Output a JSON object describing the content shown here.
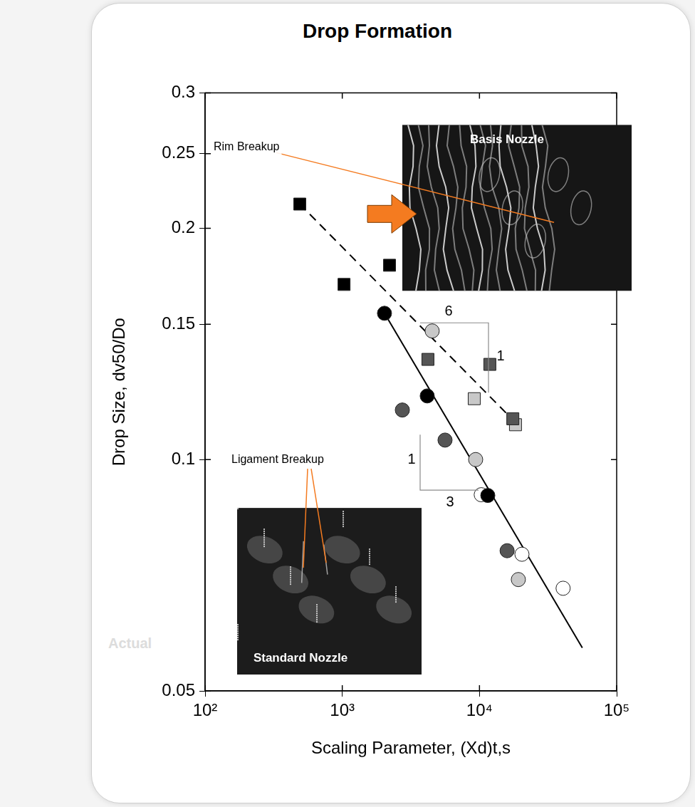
{
  "chart_data": {
    "type": "scatter",
    "title": "Drop Formation",
    "x_label": "Scaling Parameter, (Xd)t,s",
    "y_label": "Drop Size, dv50/Do",
    "log": true,
    "grid": false,
    "xlim": [
      100,
      100000
    ],
    "ylim": [
      0.05,
      0.3
    ],
    "xticks": [
      {
        "value": 100,
        "label": "10²"
      },
      {
        "value": 1000,
        "label": "10³"
      },
      {
        "value": 10000,
        "label": "10⁴"
      },
      {
        "value": 100000,
        "label": "10⁵"
      }
    ],
    "yticks": [
      0.05,
      0.1,
      0.15,
      0.2,
      0.25,
      0.3
    ],
    "series": [
      {
        "color": "#000000",
        "marker": "square",
        "x": [
          490,
          1030,
          2210
        ],
        "values": [
          0.215,
          0.169,
          0.179
        ]
      },
      {
        "color": "#555555",
        "marker": "square",
        "x": [
          4210,
          11900,
          17500
        ],
        "values": [
          0.135,
          0.133,
          0.113
        ]
      },
      {
        "color": "#c8c8c8",
        "marker": "square",
        "x": [
          9160,
          18300
        ],
        "values": [
          0.12,
          0.111
        ]
      },
      {
        "color": "#000000",
        "marker": "circle",
        "x": [
          2030,
          4160,
          11500
        ],
        "values": [
          0.155,
          0.121,
          0.0898
        ]
      },
      {
        "color": "#555555",
        "marker": "circle",
        "x": [
          2740,
          5610,
          15900
        ],
        "values": [
          0.116,
          0.106,
          0.0761
        ]
      },
      {
        "color": "#c8c8c8",
        "marker": "circle",
        "x": [
          4520,
          9380,
          19200
        ],
        "values": [
          0.147,
          0.1,
          0.0698
        ]
      },
      {
        "color": "#ffffff",
        "marker": "circle",
        "x": [
          10300,
          20400,
          40700
        ],
        "values": [
          0.09,
          0.0753,
          0.068
        ]
      },
      {
        "type": "line",
        "color": "#000000",
        "marker": "none",
        "line_style": "solid",
        "x": [
          2030,
          56200
        ],
        "values": [
          0.155,
          0.0569
        ]
      },
      {
        "type": "line",
        "color": "#000000",
        "marker": "none",
        "line_style": "dashed",
        "x": [
          490,
          16000
        ],
        "values": [
          0.215,
          0.1145
        ]
      }
    ],
    "slope_triangles": [
      {
        "run": 6,
        "rise": 1
      },
      {
        "run": 3,
        "rise": 1
      }
    ],
    "insets": [
      {
        "label": "Basis Nozzle",
        "callout": "Rim Breakup"
      },
      {
        "label": "Standard Nozzle",
        "callout": "Ligament Breakup"
      }
    ],
    "side_text": "Actual"
  }
}
